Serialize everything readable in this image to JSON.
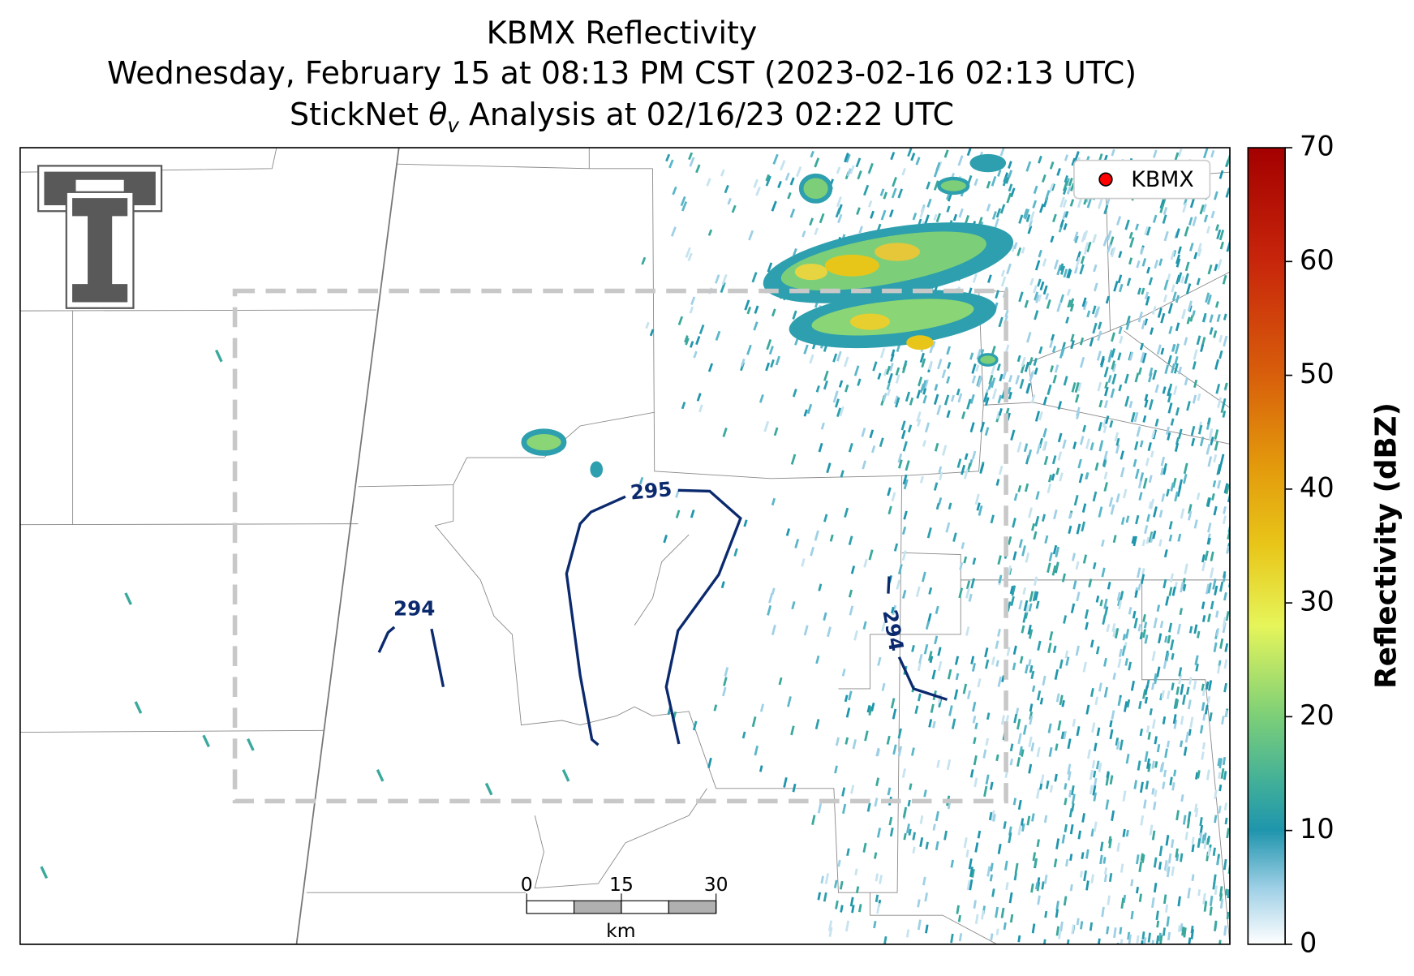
{
  "title": {
    "line1": "KBMX Reflectivity",
    "line2": "Wednesday, February 15 at 08:13 PM CST (2023-02-16 02:13 UTC)",
    "line3": {
      "before": "StickNet ",
      "symbol": "θ",
      "subscript": "v",
      "after": " Analysis at 02/16/23 02:22 UTC"
    }
  },
  "legend": {
    "label": "KBMX",
    "color": "#ff0000"
  },
  "colorbar": {
    "label": "Reflectivity (dBZ)",
    "lim": [
      0,
      70
    ],
    "ticks": [
      0,
      10,
      20,
      30,
      40,
      50,
      60,
      70
    ]
  },
  "contours": [
    {
      "label": "294"
    },
    {
      "label": "295"
    },
    {
      "label": "294"
    }
  ],
  "scalebar": {
    "unit": "km",
    "lim": [
      0,
      30
    ],
    "ticks": [
      0,
      15,
      30
    ]
  }
}
